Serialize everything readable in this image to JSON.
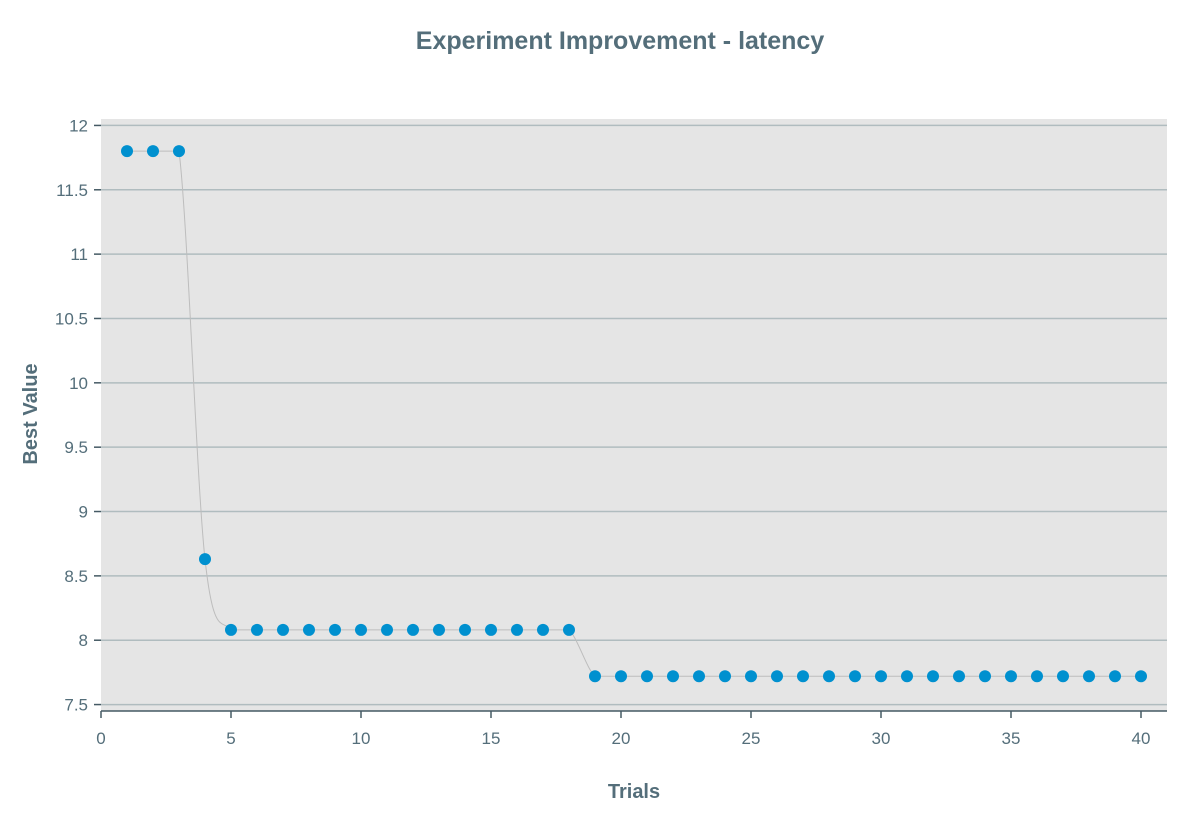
{
  "chart_data": {
    "type": "line",
    "title": "Experiment Improvement - latency",
    "xlabel": "Trials",
    "ylabel": "Best Value",
    "xlim": [
      0,
      41
    ],
    "ylim": [
      7.45,
      12.05
    ],
    "xticks": [
      0,
      5,
      10,
      15,
      20,
      25,
      30,
      35,
      40
    ],
    "xtick_labels": [
      "0",
      "5",
      "10",
      "15",
      "20",
      "25",
      "30",
      "35",
      "40"
    ],
    "yticks": [
      7.5,
      8,
      8.5,
      9,
      9.5,
      10,
      10.5,
      11,
      11.5,
      12
    ],
    "ytick_labels": [
      "7.5",
      "8",
      "8.5",
      "9",
      "9.5",
      "10",
      "10.5",
      "11",
      "11.5",
      "12"
    ],
    "grid": "horizontal",
    "legend": "none",
    "colors": {
      "plot_background": "#e5e5e5",
      "point": "#0090cf",
      "line": "#bdbdbd",
      "grid": "#b0bcbf",
      "text": "#546e7a"
    },
    "series": [
      {
        "x": [
          1,
          2,
          3,
          4,
          5,
          6,
          7,
          8,
          9,
          10,
          11,
          12,
          13,
          14,
          15,
          16,
          17,
          18,
          19,
          20,
          21,
          22,
          23,
          24,
          25,
          26,
          27,
          28,
          29,
          30,
          31,
          32,
          33,
          34,
          35,
          36,
          37,
          38,
          39,
          40
        ],
        "values": [
          11.8,
          11.8,
          11.8,
          8.63,
          8.08,
          8.08,
          8.08,
          8.08,
          8.08,
          8.08,
          8.08,
          8.08,
          8.08,
          8.08,
          8.08,
          8.08,
          8.08,
          8.08,
          7.72,
          7.72,
          7.72,
          7.72,
          7.72,
          7.72,
          7.72,
          7.72,
          7.72,
          7.72,
          7.72,
          7.72,
          7.72,
          7.72,
          7.72,
          7.72,
          7.72,
          7.72,
          7.72,
          7.72,
          7.72,
          7.72
        ]
      }
    ]
  }
}
